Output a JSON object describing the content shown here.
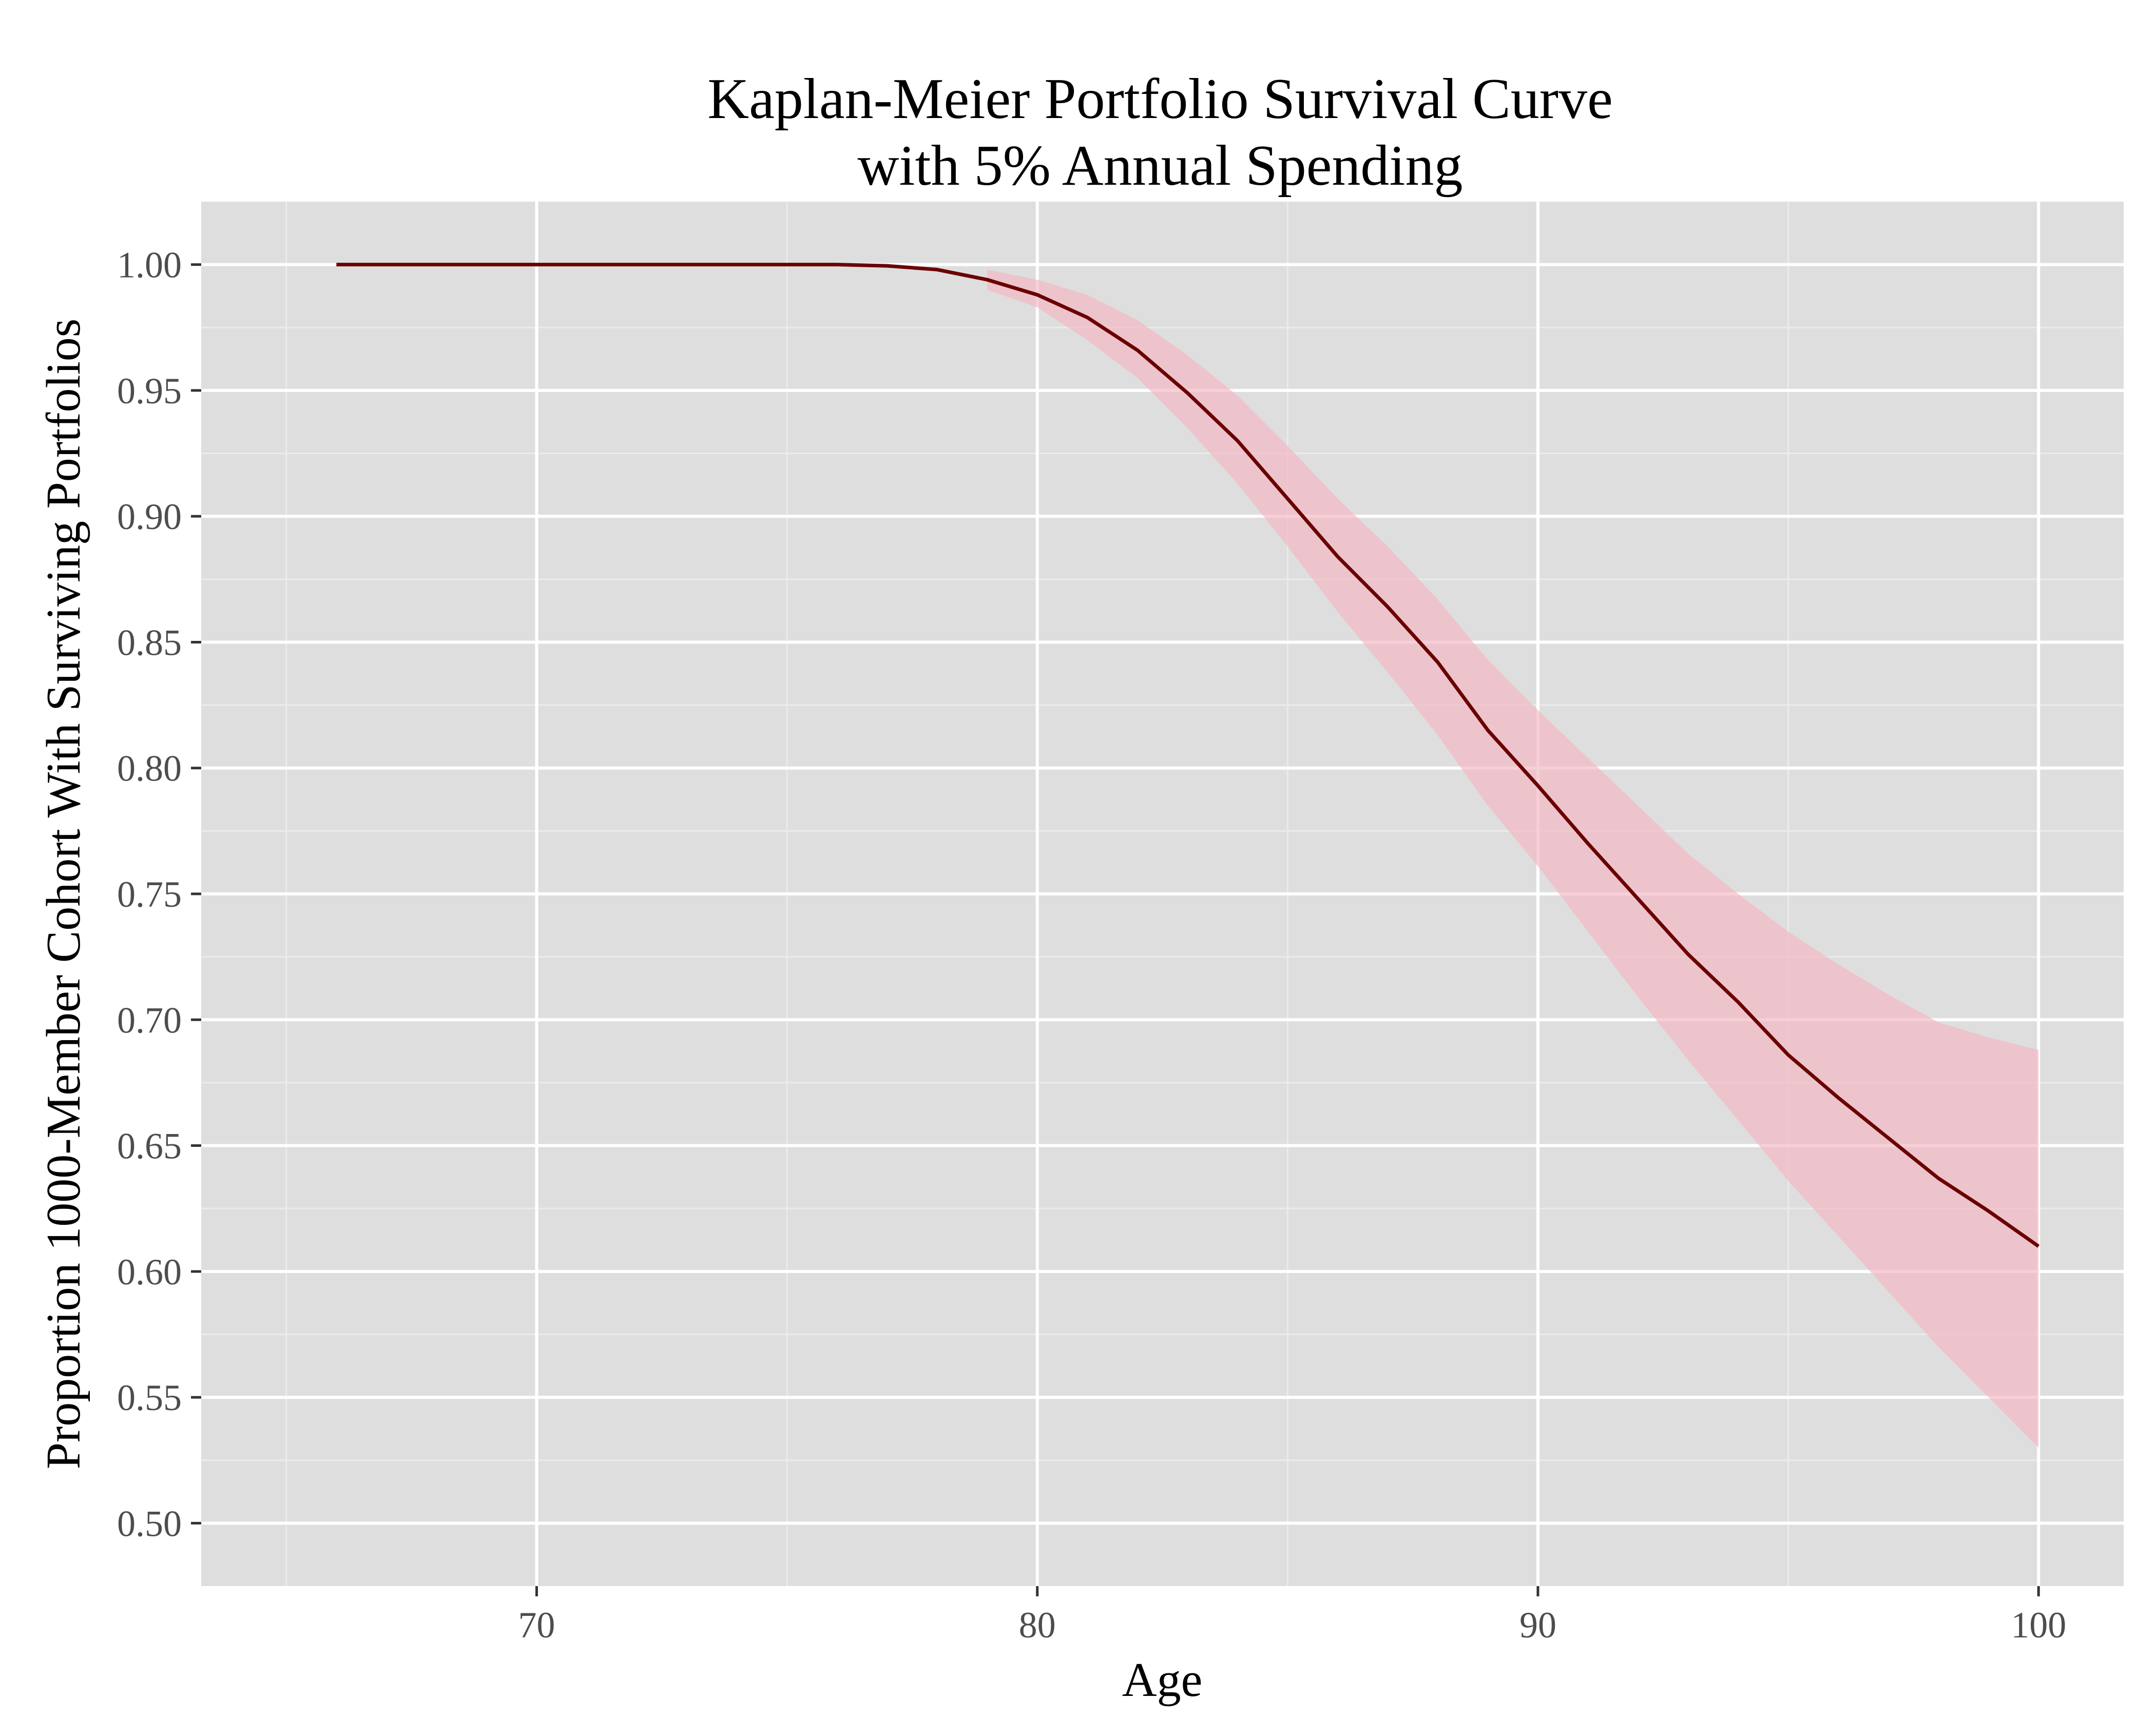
{
  "chart_data": {
    "type": "line",
    "title_lines": [
      "Kaplan-Meier Portfolio Survival Curve",
      "with 5% Annual Spending"
    ],
    "xlabel": "Age",
    "ylabel": "Proportion 1000-Member Cohort With Surviving Portfolios",
    "xlim": [
      63.3,
      101.7
    ],
    "ylim": [
      0.475,
      1.025
    ],
    "x_ticks": [
      70,
      80,
      90,
      100
    ],
    "x_tick_labels": [
      "70",
      "80",
      "90",
      "100"
    ],
    "y_ticks": [
      0.5,
      0.55,
      0.6,
      0.65,
      0.7,
      0.75,
      0.8,
      0.85,
      0.9,
      0.95,
      1.0
    ],
    "y_tick_labels": [
      "0.50",
      "0.55",
      "0.60",
      "0.65",
      "0.70",
      "0.75",
      "0.80",
      "0.85",
      "0.90",
      "0.95",
      "1.00"
    ],
    "grid": true,
    "legend": "none",
    "colors": {
      "panel_background": "#dedede",
      "grid_major": "#ffffff",
      "grid_minor": "#ebebeb",
      "line": "#6b0000",
      "band": "#f4b6c2",
      "tick_mark": "#333333"
    },
    "series": [
      {
        "type": "line",
        "x": [
          66,
          67,
          68,
          69,
          70,
          71,
          72,
          73,
          74,
          75,
          76,
          77,
          78,
          79,
          80,
          81,
          82,
          83,
          84,
          85,
          86,
          87,
          88,
          89,
          90,
          91,
          92,
          93,
          94,
          95,
          96,
          97,
          98,
          99,
          100
        ],
        "y": [
          1.0,
          1.0,
          1.0,
          1.0,
          1.0,
          1.0,
          1.0,
          1.0,
          1.0,
          1.0,
          1.0,
          0.9995,
          0.998,
          0.994,
          0.988,
          0.979,
          0.966,
          0.949,
          0.93,
          0.907,
          0.884,
          0.864,
          0.842,
          0.815,
          0.793,
          0.77,
          0.748,
          0.726,
          0.707,
          0.686,
          0.669,
          0.653,
          0.637,
          0.624,
          0.61
        ]
      },
      {
        "type": "band",
        "x": [
          79,
          80,
          81,
          82,
          83,
          84,
          85,
          86,
          87,
          88,
          89,
          90,
          91,
          92,
          93,
          94,
          95,
          96,
          97,
          98,
          99,
          100
        ],
        "lower": [
          0.99,
          0.983,
          0.97,
          0.955,
          0.935,
          0.913,
          0.888,
          0.862,
          0.838,
          0.813,
          0.785,
          0.761,
          0.735,
          0.709,
          0.684,
          0.66,
          0.636,
          0.614,
          0.592,
          0.57,
          0.55,
          0.53
        ],
        "upper": [
          0.998,
          0.994,
          0.988,
          0.978,
          0.964,
          0.948,
          0.928,
          0.907,
          0.888,
          0.867,
          0.843,
          0.823,
          0.804,
          0.785,
          0.766,
          0.75,
          0.735,
          0.722,
          0.71,
          0.699,
          0.693,
          0.688
        ]
      }
    ]
  }
}
